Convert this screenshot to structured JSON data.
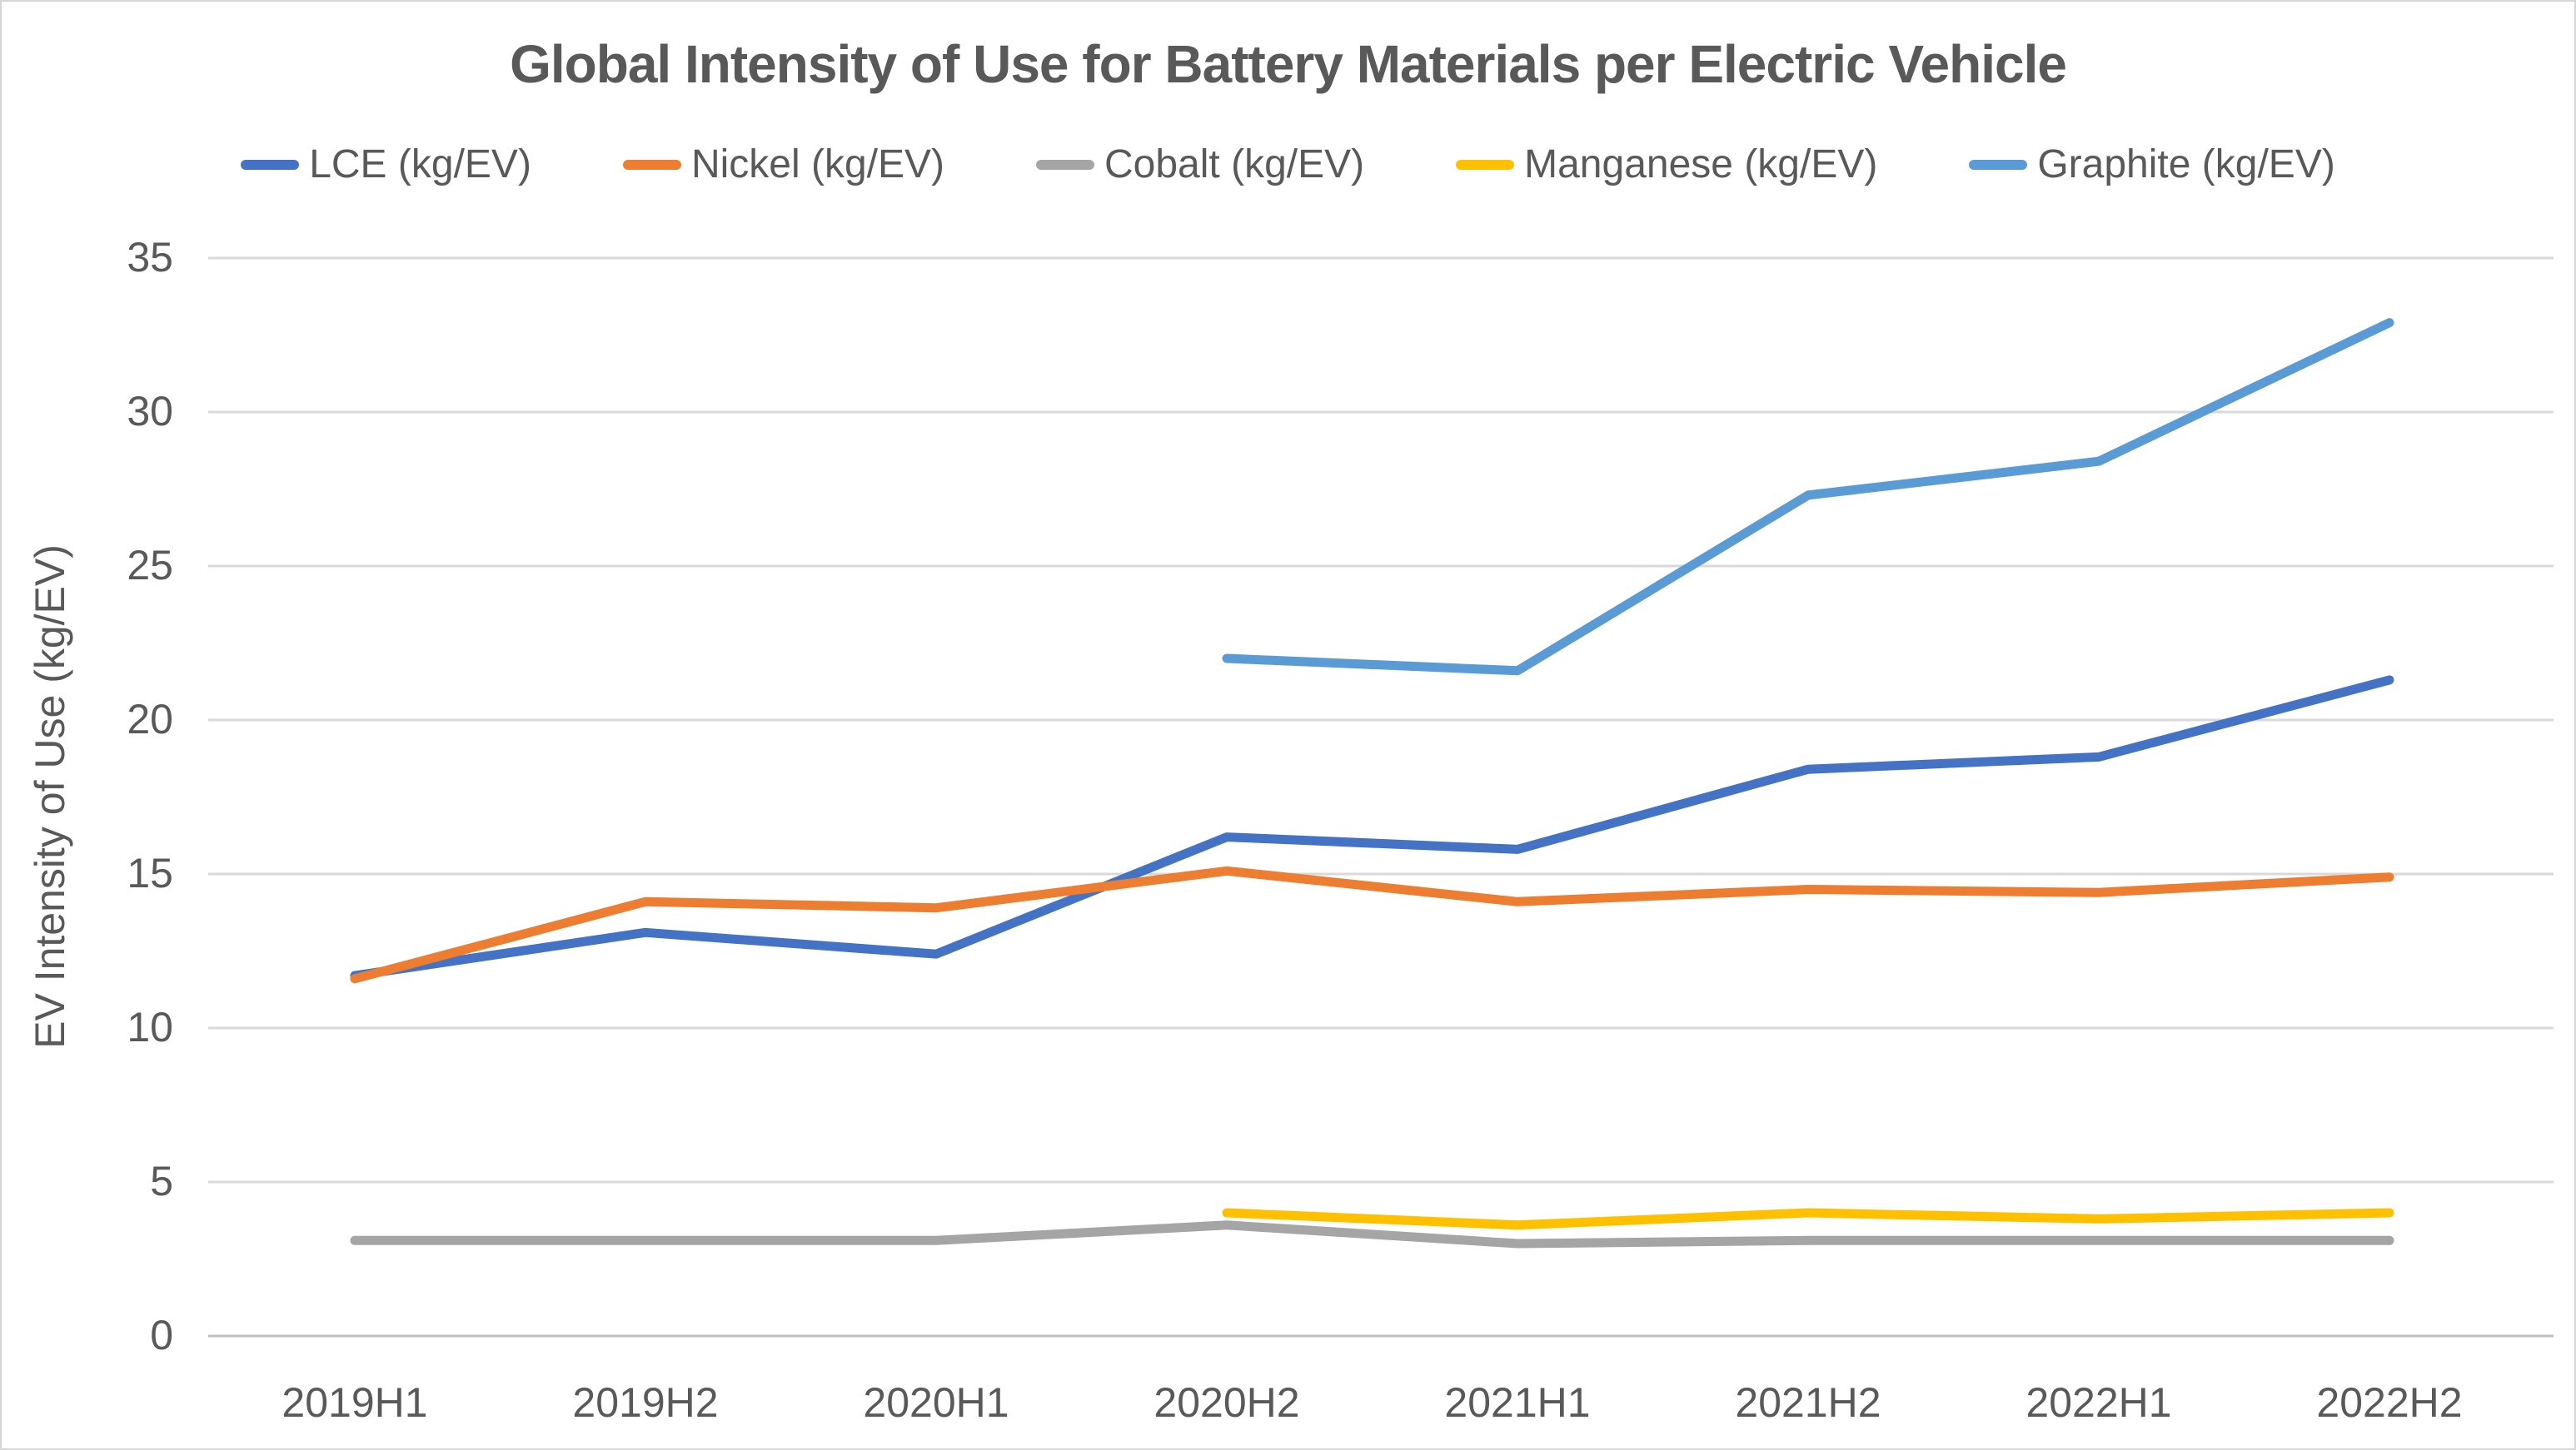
{
  "title": "Global Intensity of Use for Battery Materials per Electric Vehicle",
  "y_axis_title": "EV  Intensity of Use (kg/EV)",
  "chart_data": {
    "type": "line",
    "title": "Global Intensity of Use for Battery Materials per Electric Vehicle",
    "xlabel": "",
    "ylabel": "EV  Intensity of Use (kg/EV)",
    "categories": [
      "2019H1",
      "2019H2",
      "2020H1",
      "2020H2",
      "2021H1",
      "2021H2",
      "2022H1",
      "2022H2"
    ],
    "series": [
      {
        "name": "LCE (kg/EV)",
        "color": "#4472c4",
        "values": [
          11.7,
          13.1,
          12.4,
          16.2,
          15.8,
          18.4,
          18.8,
          21.3
        ]
      },
      {
        "name": "Nickel (kg/EV)",
        "color": "#ed7d31",
        "values": [
          11.6,
          14.1,
          13.9,
          15.1,
          14.1,
          14.5,
          14.4,
          14.9
        ]
      },
      {
        "name": "Cobalt (kg/EV)",
        "color": "#a5a5a5",
        "values": [
          3.1,
          3.1,
          3.1,
          3.6,
          3.0,
          3.1,
          3.1,
          3.1
        ]
      },
      {
        "name": "Manganese (kg/EV)",
        "color": "#ffc000",
        "values": [
          null,
          null,
          null,
          4.0,
          3.6,
          4.0,
          3.8,
          4.0
        ]
      },
      {
        "name": "Graphite (kg/EV)",
        "color": "#5b9bd5",
        "values": [
          null,
          null,
          null,
          22.0,
          21.6,
          27.3,
          28.4,
          32.9
        ]
      }
    ],
    "ylim": [
      0,
      35
    ],
    "yticks": [
      0,
      5,
      10,
      15,
      20,
      25,
      30,
      35
    ],
    "grid": "horizontal",
    "legend_position": "top",
    "gridline_color": "#d9d9d9",
    "axis_line_color": "#bfbfbf",
    "text_color": "#595959"
  }
}
